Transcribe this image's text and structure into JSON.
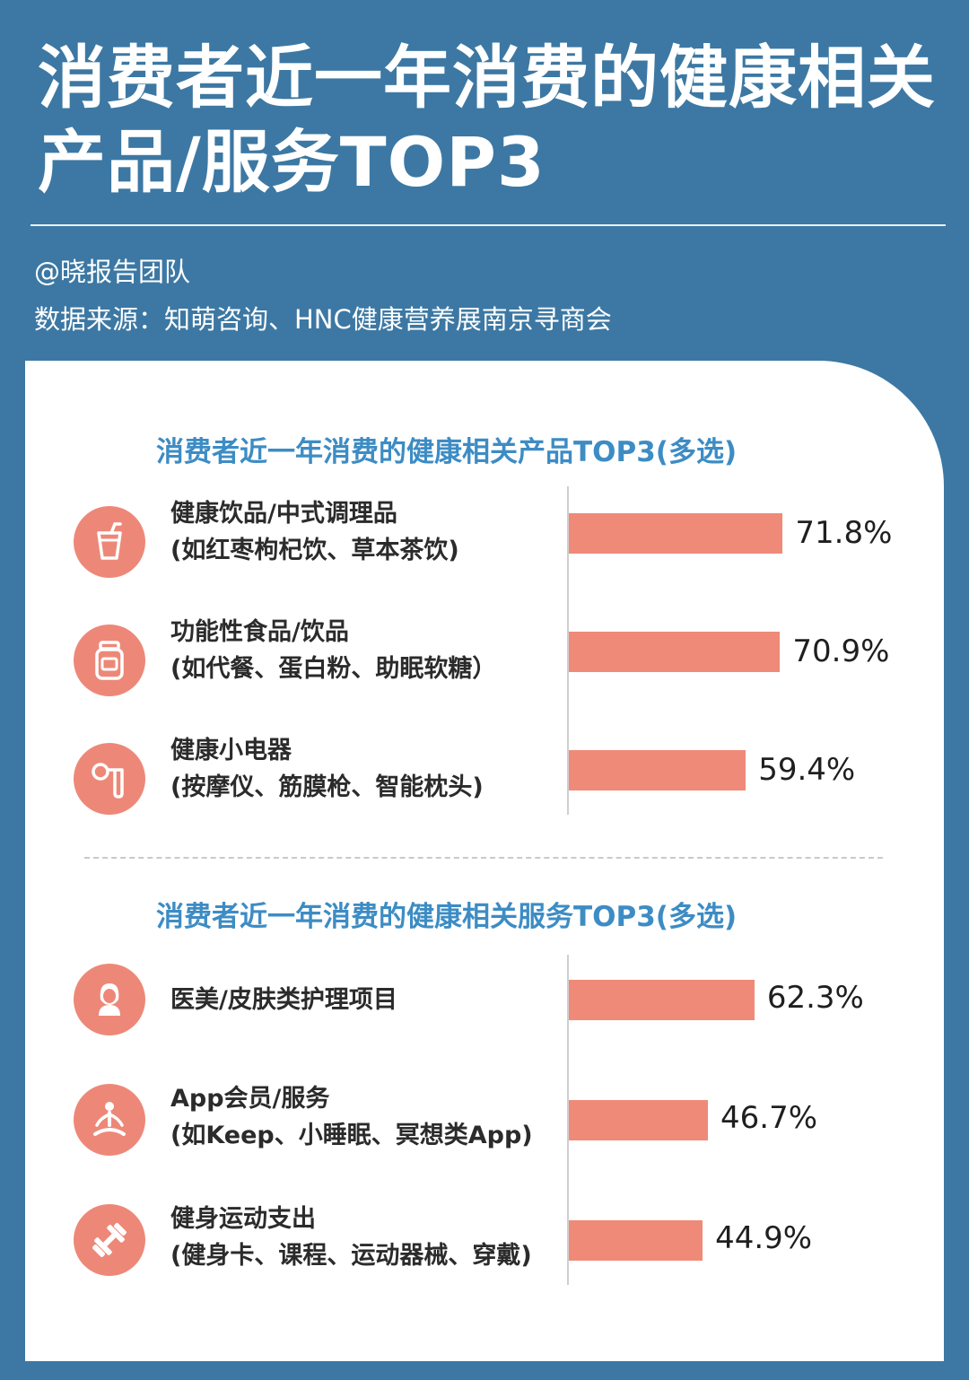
{
  "header": {
    "title": "消费者近一年消费的健康相关产品/服务TOP3",
    "author": "@晓报告团队",
    "source": "数据来源：知萌咨询、HNC健康营养展南京寻商会"
  },
  "colors": {
    "background": "#3c78a3",
    "card": "#ffffff",
    "bar": "#ef8a79",
    "icon": "#ed8878",
    "section_title": "#3d8cc4"
  },
  "chart_data": [
    {
      "type": "bar",
      "orientation": "horizontal",
      "title": "消费者近一年消费的健康相关产品TOP3(多选)",
      "xlim": [
        0,
        100
      ],
      "categories": [
        {
          "line1": "健康饮品/中式调理品",
          "line2": "(如红枣枸杞饮、草本茶饮)",
          "icon": "drink-cup-icon"
        },
        {
          "line1": "功能性食品/饮品",
          "line2": "(如代餐、蛋白粉、助眠软糖）",
          "icon": "supplement-jar-icon"
        },
        {
          "line1": "健康小电器",
          "line2": "(按摩仪、筋膜枪、智能枕头)",
          "icon": "massager-icon"
        }
      ],
      "values": [
        71.8,
        70.9,
        59.4
      ],
      "value_labels": [
        "71.8%",
        "70.9%",
        "59.4%"
      ]
    },
    {
      "type": "bar",
      "orientation": "horizontal",
      "title": "消费者近一年消费的健康相关服务TOP3(多选)",
      "xlim": [
        0,
        100
      ],
      "categories": [
        {
          "line1": "医美/皮肤类护理项目",
          "line2": "",
          "icon": "woman-face-icon"
        },
        {
          "line1": "App会员/服务",
          "line2": "(如Keep、小睡眠、冥想类App)",
          "icon": "meditation-icon"
        },
        {
          "line1": "健身运动支出",
          "line2": "(健身卡、课程、运动器械、穿戴)",
          "icon": "dumbbell-icon"
        }
      ],
      "values": [
        62.3,
        46.7,
        44.9
      ],
      "value_labels": [
        "62.3%",
        "46.7%",
        "44.9%"
      ]
    }
  ]
}
